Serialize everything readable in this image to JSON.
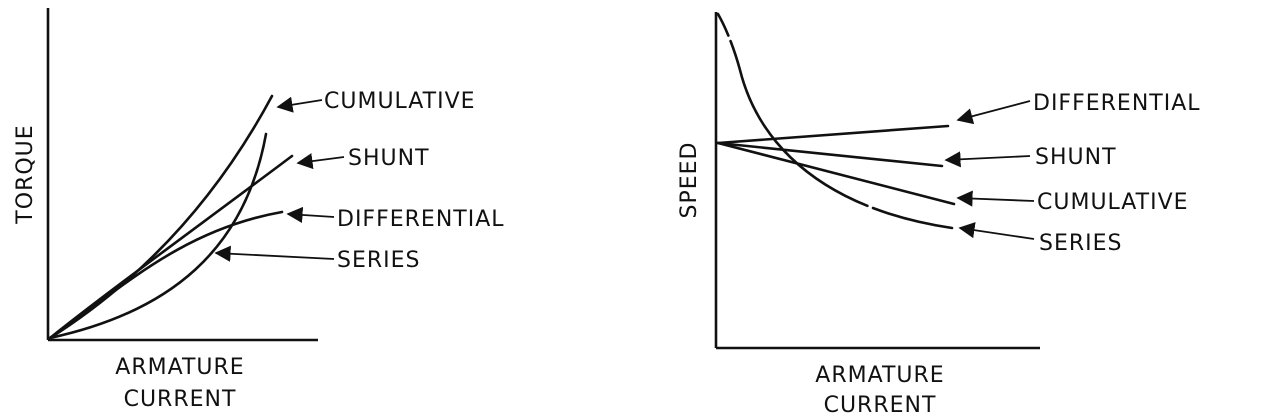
{
  "chart_data": [
    {
      "type": "line",
      "xlabel": [
        "ARMATURE",
        "CURRENT"
      ],
      "ylabel": "TORQUE",
      "series": [
        {
          "name": "CUMULATIVE"
        },
        {
          "name": "SHUNT"
        },
        {
          "name": "DIFFERENTIAL"
        },
        {
          "name": "SERIES"
        }
      ]
    },
    {
      "type": "line",
      "xlabel": [
        "ARMATURE",
        "CURRENT"
      ],
      "ylabel": "SPEED",
      "series": [
        {
          "name": "DIFFERENTIAL"
        },
        {
          "name": "SHUNT"
        },
        {
          "name": "CUMULATIVE"
        },
        {
          "name": "SERIES"
        }
      ]
    }
  ]
}
